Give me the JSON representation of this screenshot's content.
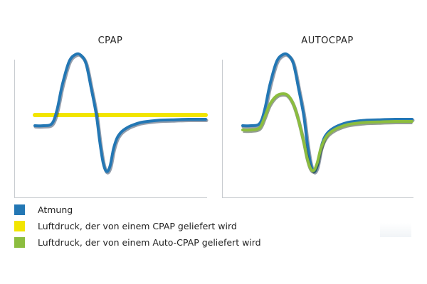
{
  "chart_data": [
    {
      "type": "line",
      "title": "CPAP",
      "xlabel": "",
      "ylabel": "",
      "grid": false,
      "series": [
        {
          "name": "Atmung",
          "color": "#2377b4",
          "x": [
            0,
            5,
            10,
            13,
            16,
            20,
            24,
            27,
            30,
            33,
            36,
            38,
            40,
            42,
            44,
            46,
            48,
            50,
            52,
            55,
            58,
            62,
            66,
            72,
            80,
            90,
            100
          ],
          "values": [
            -10,
            -10,
            -8,
            5,
            28,
            50,
            57,
            56,
            48,
            25,
            0,
            -25,
            -45,
            -53,
            -48,
            -32,
            -22,
            -17,
            -14,
            -11,
            -9,
            -7,
            -6,
            -5,
            -4.5,
            -4,
            -4
          ]
        },
        {
          "name": "Luftdruck, der von einem CPAP geliefert wird",
          "color": "#f2e500",
          "x": [
            0,
            100
          ],
          "values": [
            0,
            0
          ]
        }
      ]
    },
    {
      "type": "line",
      "title": "AUTOCPAP",
      "xlabel": "",
      "ylabel": "",
      "grid": false,
      "series": [
        {
          "name": "Atmung",
          "color": "#2377b4",
          "x": [
            0,
            5,
            10,
            13,
            16,
            20,
            24,
            27,
            30,
            33,
            36,
            38,
            40,
            42,
            44,
            46,
            48,
            50,
            52,
            55,
            58,
            62,
            66,
            72,
            80,
            90,
            100
          ],
          "values": [
            -10,
            -10,
            -8,
            5,
            28,
            50,
            57,
            56,
            48,
            25,
            0,
            -25,
            -45,
            -53,
            -48,
            -32,
            -22,
            -17,
            -14,
            -11,
            -9,
            -7,
            -6,
            -5,
            -4.5,
            -4,
            -4
          ]
        },
        {
          "name": "Luftdruck, der von einem Auto-CPAP geliefert wird",
          "color": "#8cbd3f",
          "x": [
            0,
            5,
            10,
            13,
            16,
            20,
            24,
            27,
            30,
            33,
            36,
            38,
            40,
            42,
            44,
            46,
            48,
            50,
            52,
            55,
            58,
            62,
            66,
            72,
            80,
            90,
            100
          ],
          "values": [
            -14,
            -14,
            -12,
            -2,
            10,
            18,
            20,
            18,
            10,
            -5,
            -25,
            -40,
            -50,
            -52,
            -45,
            -32,
            -24,
            -19,
            -16,
            -13,
            -11,
            -9,
            -8,
            -7,
            -6.5,
            -6,
            -6
          ]
        }
      ]
    }
  ],
  "legend": [
    {
      "label": "Atmung",
      "color": "#2377b4"
    },
    {
      "label": "Luftdruck, der von einem CPAP geliefert wird",
      "color": "#f2e500"
    },
    {
      "label": "Luftdruck, der von einem Auto-CPAP geliefert wird",
      "color": "#8cbd3f"
    }
  ]
}
